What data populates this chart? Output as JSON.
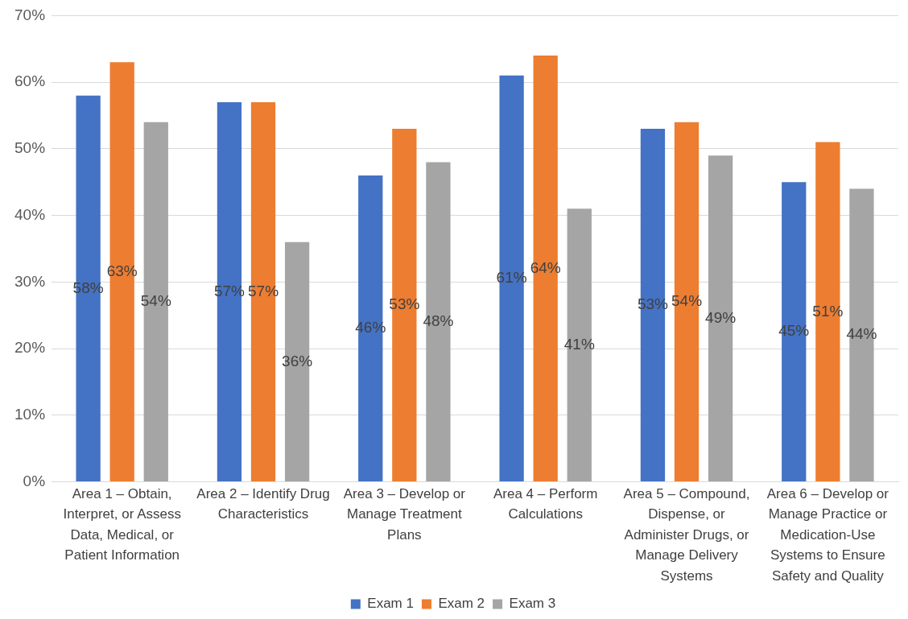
{
  "chart_data": {
    "type": "bar",
    "categories": [
      "Area 1 – Obtain, Interpret, or Assess Data, Medical, or Patient Information",
      "Area 2 – Identify Drug Characteristics",
      "Area 3 – Develop or Manage Treatment Plans",
      "Area 4 – Perform Calculations",
      "Area 5 – Compound, Dispense, or Administer Drugs, or Manage Delivery Systems",
      "Area 6 – Develop or Manage Practice or Medication-Use Systems to Ensure Safety and Quality"
    ],
    "series": [
      {
        "name": "Exam 1",
        "color": "#4472c4",
        "values": [
          58,
          57,
          46,
          61,
          53,
          45
        ],
        "value_labels": [
          "58%",
          "57%",
          "46%",
          "61%",
          "53%",
          "45%"
        ]
      },
      {
        "name": "Exam 2",
        "color": "#ed7d31",
        "values": [
          63,
          57,
          53,
          64,
          54,
          51
        ],
        "value_labels": [
          "63%",
          "57%",
          "53%",
          "64%",
          "54%",
          "51%"
        ]
      },
      {
        "name": "Exam 3",
        "color": "#a5a5a5",
        "values": [
          54,
          36,
          48,
          41,
          49,
          44
        ],
        "value_labels": [
          "54%",
          "36%",
          "48%",
          "41%",
          "49%",
          "44%"
        ]
      }
    ],
    "ylim": [
      0,
      70
    ],
    "yticks": [
      {
        "value": 0,
        "label": "0%"
      },
      {
        "value": 10,
        "label": "10%"
      },
      {
        "value": 20,
        "label": "20%"
      },
      {
        "value": 30,
        "label": "30%"
      },
      {
        "value": 40,
        "label": "40%"
      },
      {
        "value": 50,
        "label": "50%"
      },
      {
        "value": 60,
        "label": "60%"
      },
      {
        "value": 70,
        "label": "70%"
      }
    ],
    "grid": "y",
    "legend": "bottom"
  }
}
